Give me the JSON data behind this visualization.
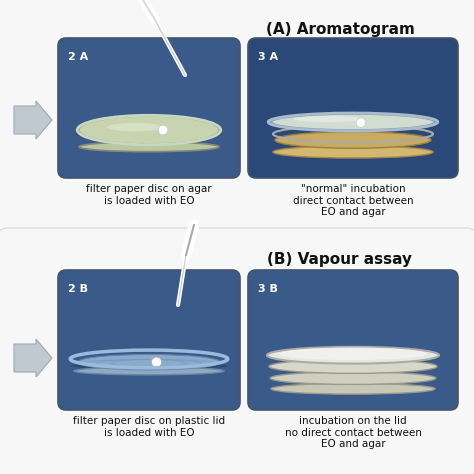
{
  "title_A": "(A) Aromatogram",
  "title_B": "(B) Vapour assay",
  "label_2A": "2 A",
  "label_3A": "3 A",
  "label_2B": "2 B",
  "label_3B": "3 B",
  "caption_2A": "filter paper disc on agar\nis loaded with EO",
  "caption_3A": "\"normal\" incubation\ndirect contact between\nEO and agar",
  "caption_2B": "filter paper disc on plastic lid\nis loaded with EO",
  "caption_3B": "incubation on the lid\nno direct contact between\nEO and agar",
  "bg_color": "#ffffff",
  "photo_bg_2A": "#3a5a8a",
  "photo_bg_3A": "#2a4878",
  "photo_bg_2B": "#3a5a8a",
  "photo_bg_3B": "#3a5a8a",
  "panel_top_bg": "#f5f5f5",
  "panel_bot_bg": "#f5f5f5",
  "arrow_color": "#c0c8d0",
  "arrow_edge": "#a0a8b0",
  "text_color": "#111111",
  "title_fontsize": 11,
  "label_fontsize": 8,
  "caption_fontsize": 7.5
}
